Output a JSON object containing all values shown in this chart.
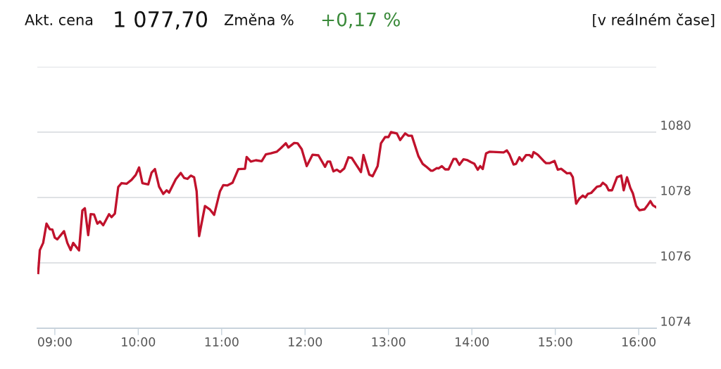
{
  "chart_data": {
    "type": "line",
    "annotations": [
      "Akt. cena",
      "1 077,70",
      "Změna %",
      "+0,17 %",
      "[v reálném čase]"
    ],
    "xlim": [
      8.79,
      16.21
    ],
    "xticks": [
      {
        "value": 9,
        "label": "09:00"
      },
      {
        "value": 10,
        "label": "10:00"
      },
      {
        "value": 11,
        "label": "11:00"
      },
      {
        "value": 12,
        "label": "12:00"
      },
      {
        "value": 13,
        "label": "13:00"
      },
      {
        "value": 14,
        "label": "14:00"
      },
      {
        "value": 15,
        "label": "15:00"
      },
      {
        "value": 16,
        "label": "16:00"
      }
    ],
    "ylim": [
      1074,
      1082
    ],
    "yticks": [
      1074,
      1076,
      1078,
      1080,
      {
        "value": 1082,
        "label": null
      }
    ],
    "grid": "y",
    "marker": "none",
    "line_style": "solid",
    "series": [
      {
        "color": "#c0122c",
        "x": [
          8.8,
          8.82,
          8.86,
          8.9,
          8.94,
          8.97,
          9.0,
          9.03,
          9.11,
          9.15,
          9.19,
          9.22,
          9.29,
          9.33,
          9.36,
          9.4,
          9.43,
          9.47,
          9.51,
          9.54,
          9.58,
          9.65,
          9.68,
          9.72,
          9.76,
          9.8,
          9.86,
          9.92,
          9.97,
          10.01,
          10.05,
          10.12,
          10.16,
          10.2,
          10.25,
          10.3,
          10.34,
          10.37,
          10.45,
          10.51,
          10.55,
          10.59,
          10.63,
          10.67,
          10.7,
          10.73,
          10.8,
          10.86,
          10.91,
          10.98,
          11.02,
          11.07,
          11.13,
          11.2,
          11.28,
          11.3,
          11.35,
          11.41,
          11.48,
          11.53,
          11.59,
          11.66,
          11.71,
          11.77,
          11.8,
          11.87,
          11.91,
          11.96,
          12.02,
          12.09,
          12.16,
          12.24,
          12.27,
          12.3,
          12.34,
          12.38,
          12.42,
          12.47,
          12.52,
          12.56,
          12.67,
          12.7,
          12.77,
          12.81,
          12.87,
          12.91,
          12.96,
          13.0,
          13.03,
          13.1,
          13.14,
          13.2,
          13.24,
          13.28,
          13.36,
          13.41,
          13.45,
          13.51,
          13.53,
          13.58,
          13.6,
          13.64,
          13.68,
          13.72,
          13.78,
          13.81,
          13.85,
          13.9,
          13.94,
          13.99,
          14.03,
          14.07,
          14.1,
          14.13,
          14.17,
          14.21,
          14.38,
          14.42,
          14.45,
          14.5,
          14.53,
          14.57,
          14.6,
          14.65,
          14.69,
          14.72,
          14.74,
          14.79,
          14.86,
          14.89,
          14.93,
          14.99,
          15.03,
          15.07,
          15.14,
          15.18,
          15.21,
          15.25,
          15.29,
          15.33,
          15.36,
          15.39,
          15.43,
          15.5,
          15.54,
          15.57,
          15.61,
          15.64,
          15.68,
          15.74,
          15.79,
          15.82,
          15.86,
          15.9,
          15.93,
          15.97,
          16.01,
          16.07,
          16.1,
          16.14,
          16.17,
          16.21
        ],
        "values": [
          1075.69,
          1076.39,
          1076.61,
          1077.2,
          1077.03,
          1077.02,
          1076.77,
          1076.72,
          1076.97,
          1076.61,
          1076.39,
          1076.61,
          1076.38,
          1077.6,
          1077.67,
          1076.85,
          1077.49,
          1077.48,
          1077.2,
          1077.27,
          1077.15,
          1077.49,
          1077.4,
          1077.51,
          1078.32,
          1078.44,
          1078.42,
          1078.54,
          1078.69,
          1078.92,
          1078.44,
          1078.4,
          1078.76,
          1078.87,
          1078.33,
          1078.11,
          1078.22,
          1078.15,
          1078.56,
          1078.75,
          1078.6,
          1078.57,
          1078.67,
          1078.62,
          1078.19,
          1076.82,
          1077.74,
          1077.63,
          1077.47,
          1078.19,
          1078.38,
          1078.37,
          1078.45,
          1078.87,
          1078.88,
          1079.24,
          1079.1,
          1079.14,
          1079.11,
          1079.32,
          1079.35,
          1079.4,
          1079.51,
          1079.66,
          1079.53,
          1079.67,
          1079.66,
          1079.48,
          1078.96,
          1079.31,
          1079.29,
          1078.94,
          1079.1,
          1079.1,
          1078.8,
          1078.85,
          1078.78,
          1078.89,
          1079.23,
          1079.21,
          1078.78,
          1079.3,
          1078.7,
          1078.65,
          1078.96,
          1079.66,
          1079.85,
          1079.85,
          1080.0,
          1079.96,
          1079.76,
          1079.96,
          1079.89,
          1079.89,
          1079.26,
          1079.03,
          1078.95,
          1078.82,
          1078.82,
          1078.9,
          1078.89,
          1078.96,
          1078.86,
          1078.86,
          1079.18,
          1079.18,
          1079.0,
          1079.17,
          1079.15,
          1079.08,
          1079.03,
          1078.85,
          1078.96,
          1078.87,
          1079.35,
          1079.4,
          1079.38,
          1079.44,
          1079.32,
          1079.01,
          1079.03,
          1079.23,
          1079.12,
          1079.3,
          1079.3,
          1079.23,
          1079.39,
          1079.31,
          1079.12,
          1079.05,
          1079.05,
          1079.12,
          1078.85,
          1078.88,
          1078.74,
          1078.75,
          1078.62,
          1077.81,
          1077.97,
          1078.06,
          1078.0,
          1078.11,
          1078.14,
          1078.33,
          1078.35,
          1078.45,
          1078.37,
          1078.22,
          1078.22,
          1078.62,
          1078.67,
          1078.22,
          1078.62,
          1078.29,
          1078.13,
          1077.74,
          1077.61,
          1077.64,
          1077.74,
          1077.89,
          1077.76,
          1077.7
        ]
      }
    ]
  }
}
